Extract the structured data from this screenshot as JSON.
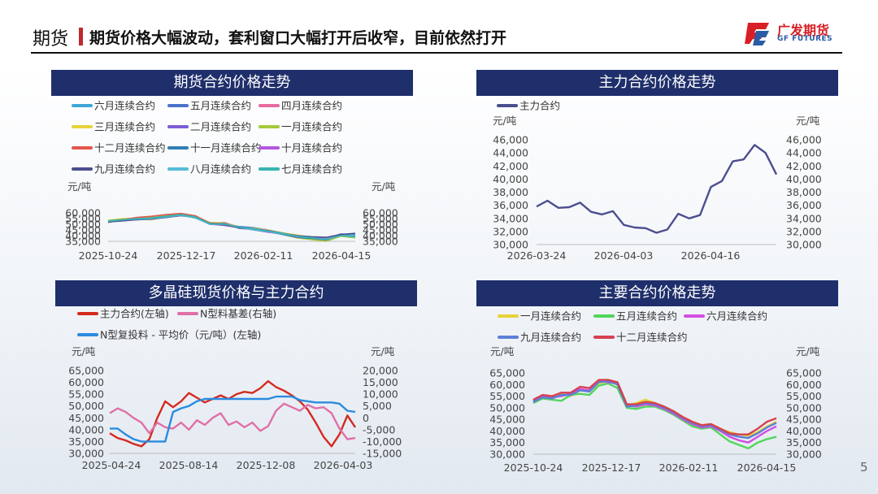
{
  "header": {
    "tag": "期货",
    "title": "期货价格大幅波动，套利窗口大幅打开后收窄，目前依然打开",
    "logo_cn": "广发期货",
    "logo_en": "GF FUTURES",
    "page_number": "5"
  },
  "colors": {
    "navy": "#1f2f6b",
    "accent_red": "#c0282d"
  },
  "chart_data": [
    {
      "id": "futures-contracts",
      "type": "line",
      "title": "期货合约价格走势",
      "unit_left": "元/吨",
      "unit_right": "元/吨",
      "x_ticks": [
        "2025-10-24",
        "2025-12-17",
        "2026-02-11",
        "2026-04-15"
      ],
      "ylim": [
        35000,
        60000
      ],
      "y_ticks": [
        "60,000",
        "55,000",
        "50,000",
        "45,000",
        "40,000",
        "35,000"
      ],
      "series": [
        {
          "name": "六月连续合约",
          "color": "#3fa7d6",
          "values": [
            52500,
            54000,
            55000,
            54500,
            56500,
            58500,
            56000,
            50500,
            51000,
            47500,
            46500,
            44500,
            42000,
            39500,
            38000,
            36500,
            40500,
            39500
          ]
        },
        {
          "name": "五月连续合约",
          "color": "#4a73c9",
          "values": [
            53000,
            54500,
            55500,
            55000,
            56000,
            58500,
            56500,
            51000,
            50500,
            48000,
            47000,
            45000,
            42500,
            40000,
            38500,
            37000,
            41500,
            40500
          ]
        },
        {
          "name": "四月连续合约",
          "color": "#e86aa0",
          "values": [
            52000,
            54500,
            55500,
            55500,
            57000,
            59000,
            56500,
            50500,
            51500,
            47500,
            46000,
            44000,
            41000,
            38500,
            37000,
            35500,
            40000,
            38500
          ]
        },
        {
          "name": "三月连续合约",
          "color": "#e8d23a",
          "values": [
            53500,
            55000,
            55000,
            54000,
            56500,
            58000,
            55500,
            51000,
            50500,
            47000,
            46500,
            45000,
            42500,
            40500,
            38500,
            37500,
            41000,
            40000
          ]
        },
        {
          "name": "二月连续合约",
          "color": "#7b5cd6",
          "values": [
            52500,
            54000,
            54500,
            55000,
            57000,
            58500,
            56000,
            50000,
            50000,
            47500,
            46000,
            44500,
            42000,
            39000,
            37500,
            36000,
            40000,
            39000
          ]
        },
        {
          "name": "一月连续合约",
          "color": "#a5c93a",
          "values": [
            53000,
            54500,
            55000,
            56000,
            57500,
            59000,
            57000,
            51500,
            51000,
            47500,
            45500,
            43500,
            41000,
            38000,
            36500,
            35000,
            39500,
            38000
          ]
        },
        {
          "name": "十二月连续合约",
          "color": "#e2574c",
          "values": [
            51500,
            54000,
            56000,
            57000,
            58500,
            59500,
            57500,
            51000,
            50500,
            47000,
            46000,
            44000,
            41500,
            39000,
            38000,
            36500,
            41000,
            40000
          ]
        },
        {
          "name": "十一月连续合约",
          "color": "#2f7fb5",
          "values": [
            52000,
            53500,
            54500,
            55500,
            57000,
            58000,
            55500,
            50000,
            50500,
            46500,
            45500,
            43500,
            41000,
            38500,
            37500,
            37000,
            40500,
            41000
          ]
        },
        {
          "name": "十月连续合约",
          "color": "#b457e0",
          "values": [
            52500,
            53500,
            54000,
            55000,
            56500,
            58000,
            56000,
            50000,
            49000,
            47000,
            45000,
            43000,
            41500,
            39000,
            38500,
            37500,
            40000,
            39500
          ]
        },
        {
          "name": "九月连续合约",
          "color": "#4b4f8f",
          "values": [
            52000,
            53000,
            54000,
            54500,
            56000,
            57500,
            56000,
            50500,
            49500,
            47000,
            45500,
            44000,
            42000,
            40000,
            39000,
            38500,
            41000,
            42000
          ]
        },
        {
          "name": "八月连续合约",
          "color": "#55bcd8",
          "values": [
            52500,
            54000,
            54500,
            55000,
            56500,
            58000,
            55500,
            50000,
            50000,
            47500,
            45000,
            43500,
            41500,
            39500,
            38000,
            37000,
            40000,
            40500
          ]
        },
        {
          "name": "七月连续合约",
          "color": "#35b3b3",
          "values": [
            53000,
            54000,
            55000,
            55500,
            57000,
            58500,
            56500,
            50500,
            50000,
            47500,
            46000,
            44000,
            42000,
            39500,
            38000,
            36500,
            40000,
            39000
          ]
        }
      ]
    },
    {
      "id": "main-contract",
      "type": "line",
      "title": "主力合约价格走势",
      "unit_left": "元/吨",
      "unit_right": "元/吨",
      "x_ticks": [
        "2026-03-24",
        "2026-04-03",
        "2026-04-16"
      ],
      "ylim": [
        30000,
        46000
      ],
      "y_ticks": [
        "46,000",
        "44,000",
        "42,000",
        "40,000",
        "38,000",
        "36,000",
        "34,000",
        "32,000",
        "30,000"
      ],
      "series": [
        {
          "name": "主力合约",
          "color": "#4b4f8f",
          "values": [
            35800,
            36700,
            35600,
            35700,
            36400,
            35000,
            34600,
            35100,
            33000,
            32600,
            32500,
            31800,
            32300,
            34700,
            34000,
            34500,
            38800,
            39700,
            42700,
            43000,
            45200,
            44000,
            40700
          ]
        }
      ]
    },
    {
      "id": "spot-vs-main",
      "type": "line",
      "title": "多晶硅现货价格与主力合约",
      "unit_left": "元/吨",
      "unit_right": "元/吨",
      "x_ticks": [
        "2025-04-24",
        "2025-08-14",
        "2025-12-08",
        "2026-04-03"
      ],
      "ylim_left": [
        30000,
        65000
      ],
      "ylim_right": [
        -15000,
        20000
      ],
      "y_ticks_left": [
        "65,000",
        "60,000",
        "55,000",
        "50,000",
        "45,000",
        "40,000",
        "35,000",
        "30,000"
      ],
      "y_ticks_right": [
        "20,000",
        "15,000",
        "10,000",
        "5,000",
        "0",
        "-5,000",
        "-10,000",
        "-15,000"
      ],
      "series": [
        {
          "name": "主力合约(左轴)",
          "axis": "left",
          "color": "#d52a20",
          "values": [
            38500,
            36500,
            35500,
            34000,
            33000,
            36000,
            45000,
            52000,
            49500,
            52000,
            55500,
            53500,
            51500,
            53000,
            54500,
            53000,
            55000,
            56000,
            55500,
            57500,
            60500,
            58000,
            56500,
            54500,
            52000,
            48500,
            43000,
            37000,
            33000,
            38000,
            46000,
            41000
          ]
        },
        {
          "name": "N型料基差(右轴)",
          "axis": "right",
          "color": "#e070a8",
          "values": [
            2000,
            4000,
            2500,
            0,
            -2000,
            -6500,
            -2000,
            -4000,
            -4500,
            -2000,
            -5000,
            -1000,
            -3000,
            0,
            2000,
            -3000,
            -1500,
            -4000,
            -2000,
            -5500,
            -3500,
            3000,
            6000,
            4500,
            3000,
            5500,
            4000,
            4500,
            2000,
            -4500,
            -9000,
            -8500
          ]
        },
        {
          "name": "N型复投料 - 平均价（元/吨）(左轴)",
          "axis": "left",
          "color": "#2a8be0",
          "values": [
            40500,
            40500,
            38000,
            36000,
            35000,
            35000,
            35000,
            35000,
            47500,
            49000,
            50000,
            52000,
            53000,
            53000,
            53000,
            53000,
            53000,
            53000,
            53000,
            53000,
            53000,
            54000,
            54000,
            54000,
            52500,
            52000,
            51500,
            51500,
            51500,
            51000,
            48000,
            47500
          ]
        }
      ]
    },
    {
      "id": "major-contracts",
      "type": "line",
      "title": "主要合约价格走势",
      "unit_left": "元/吨",
      "unit_right": "元/吨",
      "x_ticks": [
        "2025-10-24",
        "2025-12-17",
        "2026-02-11",
        "2026-04-15"
      ],
      "ylim": [
        30000,
        65000
      ],
      "y_ticks": [
        "65,000",
        "60,000",
        "55,000",
        "50,000",
        "45,000",
        "40,000",
        "35,000",
        "30,000"
      ],
      "series": [
        {
          "name": "一月连续合约",
          "color": "#e8d23a",
          "values": [
            52500,
            54500,
            54000,
            56000,
            55000,
            57500,
            57000,
            60500,
            61500,
            60000,
            51000,
            52000,
            53500,
            52000,
            50000,
            48500,
            46000,
            44000,
            42500,
            43000,
            41000,
            39500,
            38500,
            38000,
            39500,
            42000,
            44000
          ]
        },
        {
          "name": "五月连续合约",
          "color": "#52d65a",
          "values": [
            52000,
            54000,
            53500,
            53000,
            55500,
            56000,
            55500,
            59500,
            60500,
            58500,
            50000,
            49500,
            50500,
            50500,
            49000,
            47000,
            44500,
            42000,
            41000,
            41500,
            38500,
            35500,
            34000,
            32500,
            35000,
            36500,
            37500
          ]
        },
        {
          "name": "六月连续合约",
          "color": "#d24ee0",
          "values": [
            53000,
            55000,
            54500,
            55000,
            56000,
            58000,
            57500,
            61500,
            61000,
            60500,
            51000,
            50500,
            51500,
            51000,
            49500,
            47500,
            45000,
            43000,
            41500,
            42000,
            40000,
            37500,
            36000,
            35000,
            37500,
            40000,
            42000
          ]
        },
        {
          "name": "九月连续合约",
          "color": "#5d7fd8",
          "values": [
            52500,
            54500,
            54000,
            55500,
            55500,
            57500,
            57000,
            61000,
            61500,
            60000,
            50500,
            51000,
            52000,
            51500,
            50000,
            48000,
            45500,
            43500,
            42000,
            42500,
            40500,
            38500,
            37500,
            37000,
            39000,
            41500,
            43500
          ]
        },
        {
          "name": "十二月连续合约",
          "color": "#d8404f",
          "values": [
            53500,
            55500,
            55000,
            56500,
            56500,
            59000,
            58500,
            62000,
            62000,
            61000,
            51500,
            51500,
            52500,
            52000,
            50500,
            48500,
            46000,
            44000,
            42500,
            43000,
            41000,
            39000,
            38500,
            38500,
            41000,
            44000,
            45500
          ]
        }
      ]
    }
  ]
}
